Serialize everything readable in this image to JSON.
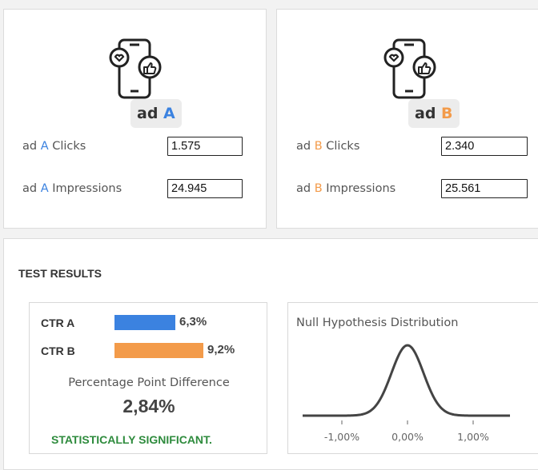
{
  "ad_a": {
    "badge_prefix": "ad",
    "badge_letter": "A",
    "clicks_label_prefix": "ad",
    "clicks_label_letter": "A",
    "clicks_label_suffix": "Clicks",
    "clicks_value": "1.575",
    "impressions_label_prefix": "ad",
    "impressions_label_letter": "A",
    "impressions_label_suffix": "Impressions",
    "impressions_value": "24.945"
  },
  "ad_b": {
    "badge_prefix": "ad",
    "badge_letter": "B",
    "clicks_label_prefix": "ad",
    "clicks_label_letter": "B",
    "clicks_label_suffix": "Clicks",
    "clicks_value": "2.340",
    "impressions_label_prefix": "ad",
    "impressions_label_letter": "B",
    "impressions_label_suffix": "Impressions",
    "impressions_value": "25.561"
  },
  "results": {
    "title": "TEST RESULTS",
    "ctr_a_label": "CTR A",
    "ctr_a_value": "6,3%",
    "ctr_b_label": "CTR B",
    "ctr_b_value": "9,2%",
    "ppd_label": "Percentage Point Difference",
    "ppd_value": "2,84%",
    "significance": "STATISTICALLY SIGNIFICANT."
  },
  "distribution": {
    "title": "Null Hypothesis Distribution",
    "ticks": [
      "-1,00%",
      "0,00%",
      "1,00%"
    ]
  },
  "colors": {
    "ad_a": "#3b82e0",
    "ad_b": "#f39b4a",
    "significant": "#2e8b3d"
  },
  "icons": {
    "ad_a": "phone-social-icon",
    "ad_b": "phone-social-icon"
  },
  "chart_data": {
    "type": "bar",
    "categories": [
      "CTR A",
      "CTR B"
    ],
    "values": [
      6.3,
      9.2
    ],
    "xlim": [
      0,
      12
    ]
  }
}
